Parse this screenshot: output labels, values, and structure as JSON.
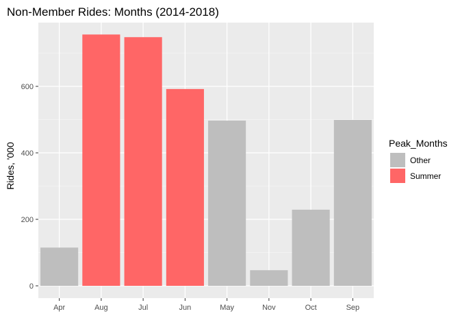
{
  "chart_data": {
    "type": "bar",
    "title": "Non-Member Rides: Months (2014-2018)",
    "xlabel": "",
    "ylabel": "Rides, '000",
    "categories": [
      "Apr",
      "Aug",
      "Jul",
      "Jun",
      "May",
      "Nov",
      "Oct",
      "Sep"
    ],
    "values": [
      115,
      756,
      748,
      592,
      497,
      47,
      229,
      499
    ],
    "groups": [
      "Other",
      "Summer",
      "Summer",
      "Summer",
      "Other",
      "Other",
      "Other",
      "Other"
    ],
    "ylim": [
      0,
      790
    ],
    "yticks": [
      0,
      200,
      400,
      600
    ],
    "grid": true,
    "legend": {
      "title": "Peak_Months",
      "placement": "right",
      "entries": [
        {
          "name": "Other",
          "color": "#bebebe"
        },
        {
          "name": "Summer",
          "color": "#ff6666"
        }
      ]
    },
    "colors": {
      "Other": "#bebebe",
      "Summer": "#ff6666",
      "panel_background": "#ebebeb",
      "grid_major": "#ffffff"
    }
  }
}
